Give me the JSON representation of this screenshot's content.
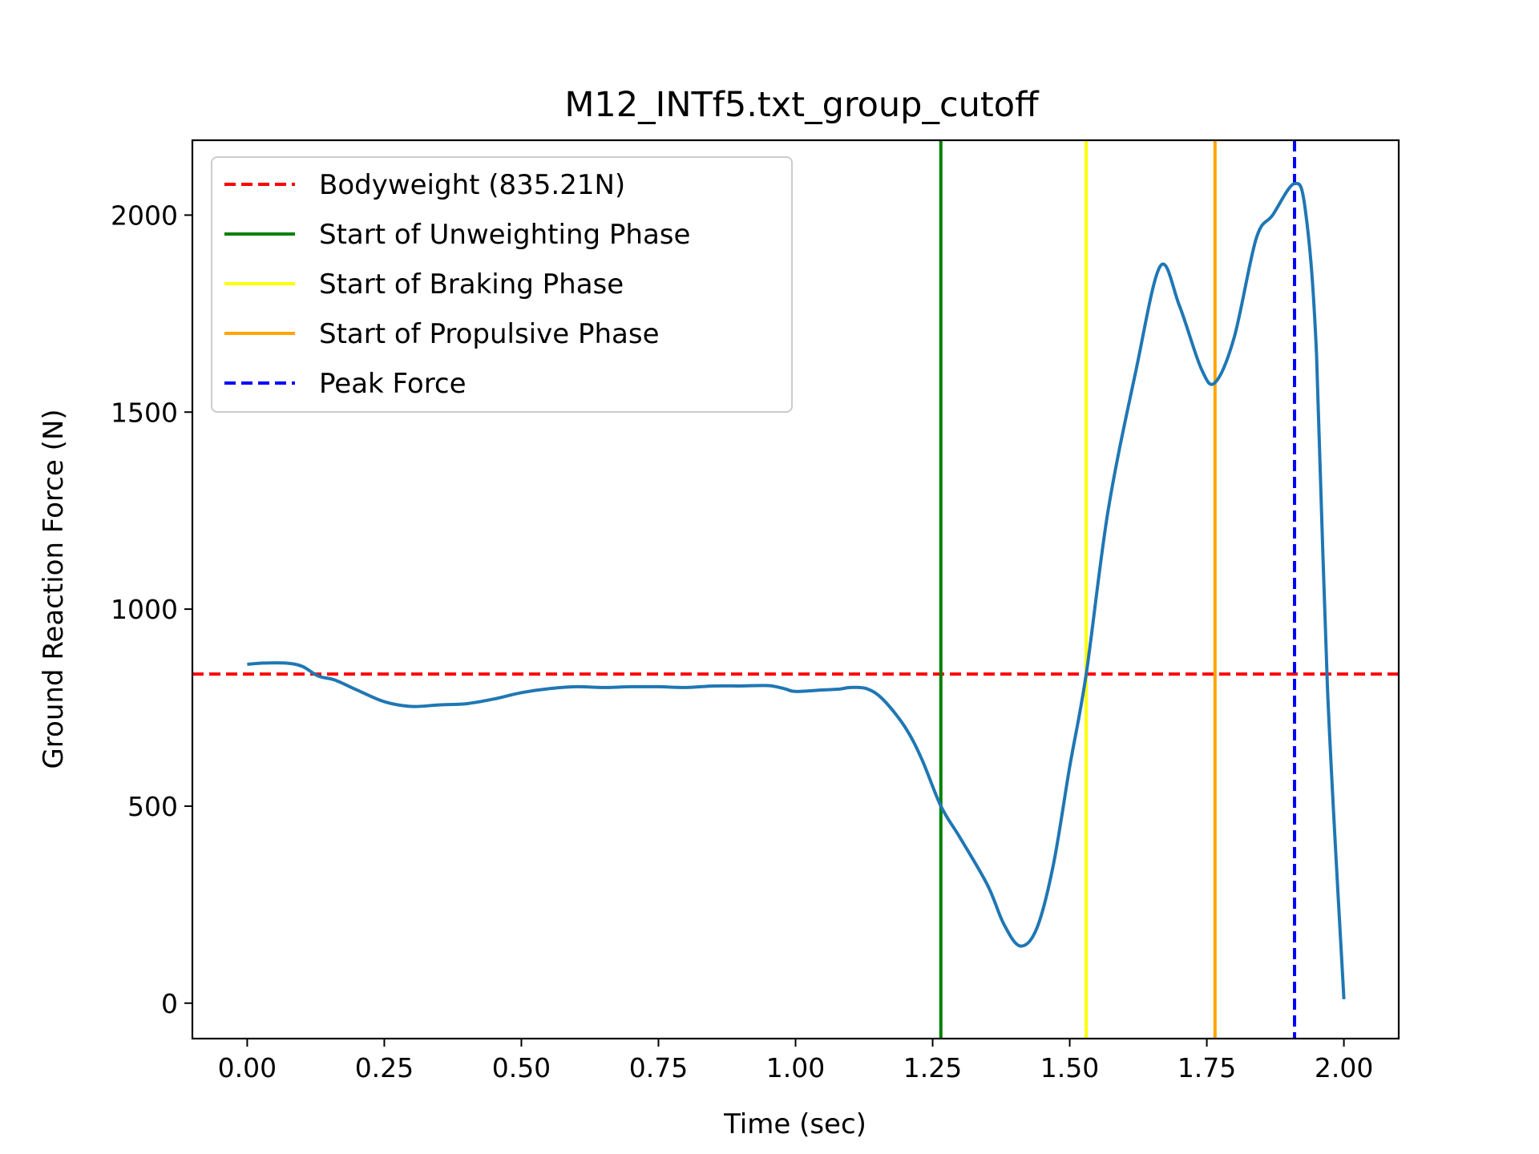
{
  "chart_data": {
    "type": "line",
    "title": "M12_INTf5.txt_group_cutoff",
    "xlabel": "Time (sec)",
    "ylabel": "Ground Reaction Force (N)",
    "xlim": [
      -0.1,
      2.1
    ],
    "ylim": [
      -90,
      2190
    ],
    "xticks": [
      0.0,
      0.25,
      0.5,
      0.75,
      1.0,
      1.25,
      1.5,
      1.75,
      2.0
    ],
    "xtick_labels": [
      "0.00",
      "0.25",
      "0.50",
      "0.75",
      "1.00",
      "1.25",
      "1.50",
      "1.75",
      "2.00"
    ],
    "yticks": [
      0,
      500,
      1000,
      1500,
      2000
    ],
    "ytick_labels": [
      "0",
      "500",
      "1000",
      "1500",
      "2000"
    ],
    "grid": false,
    "legend_position": "top-left",
    "series": [
      {
        "color": "#1f77b4",
        "x": [
          0.0,
          0.03,
          0.07,
          0.1,
          0.13,
          0.16,
          0.2,
          0.25,
          0.3,
          0.35,
          0.4,
          0.45,
          0.5,
          0.55,
          0.6,
          0.65,
          0.7,
          0.75,
          0.8,
          0.85,
          0.9,
          0.95,
          0.98,
          1.0,
          1.05,
          1.08,
          1.1,
          1.13,
          1.16,
          1.2,
          1.23,
          1.265,
          1.3,
          1.35,
          1.38,
          1.41,
          1.44,
          1.47,
          1.5,
          1.53,
          1.57,
          1.62,
          1.665,
          1.7,
          1.74,
          1.765,
          1.8,
          1.84,
          1.87,
          1.91,
          1.93,
          1.95,
          1.97,
          2.0
        ],
        "y": [
          860,
          863,
          863,
          855,
          830,
          820,
          795,
          765,
          753,
          757,
          760,
          772,
          788,
          798,
          803,
          801,
          803,
          803,
          801,
          805,
          805,
          806,
          798,
          791,
          795,
          797,
          801,
          798,
          770,
          700,
          620,
          500,
          420,
          300,
          200,
          145,
          190,
          350,
          600,
          835,
          1250,
          1600,
          1870,
          1770,
          1610,
          1575,
          1690,
          1940,
          2000,
          2080,
          2010,
          1650,
          800,
          10
        ]
      }
    ],
    "reference_lines": [
      {
        "orientation": "horizontal",
        "value": 835.21,
        "label": "Bodyweight (835.21N)",
        "color": "#ff0000",
        "style": "dashed"
      },
      {
        "orientation": "vertical",
        "value": 1.265,
        "label": "Start of Unweighting Phase",
        "color": "#008000",
        "style": "solid"
      },
      {
        "orientation": "vertical",
        "value": 1.53,
        "label": "Start of Braking Phase",
        "color": "#ffff00",
        "style": "solid"
      },
      {
        "orientation": "vertical",
        "value": 1.765,
        "label": "Start of Propulsive Phase",
        "color": "#ffa500",
        "style": "solid"
      },
      {
        "orientation": "vertical",
        "value": 1.91,
        "label": "Peak Force",
        "color": "#0000ff",
        "style": "dashed"
      }
    ]
  }
}
